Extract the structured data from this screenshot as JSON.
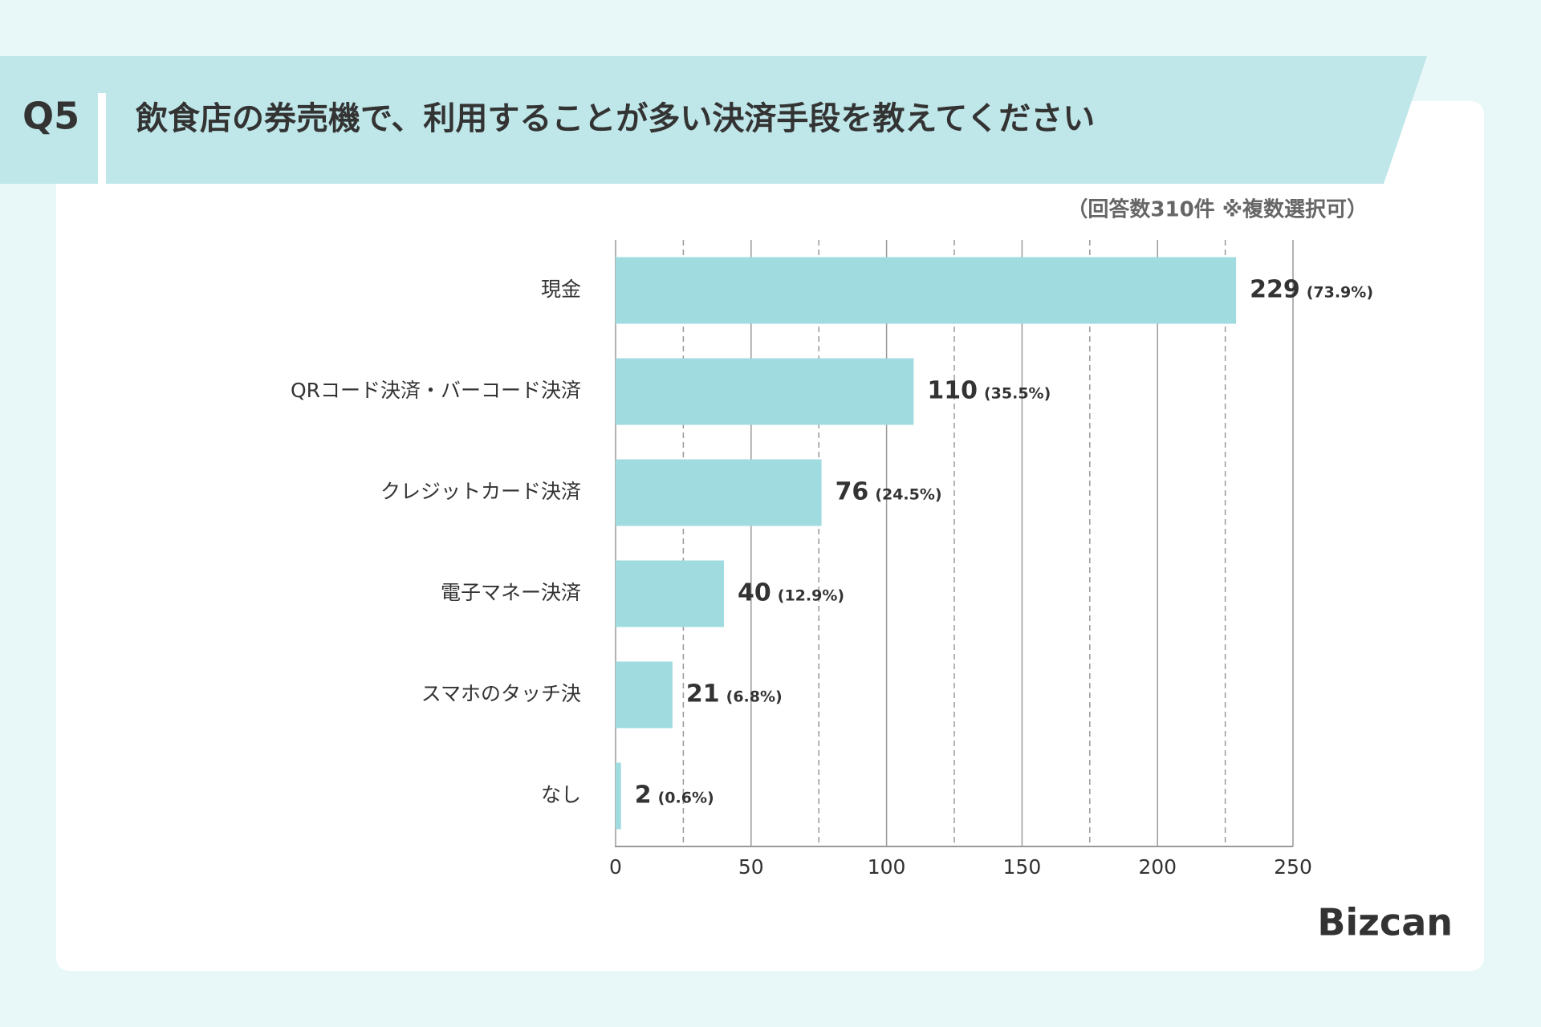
{
  "chart_data": {
    "type": "barh",
    "question": "Q5",
    "title": "飲食店の券売機で、利用することが多い決済手段を教えてください",
    "subtitle": "（回答数310件 ※複数選択可）",
    "logo": "Bizcan",
    "categories": [
      "現金",
      "QRコード決済・バーコード決済",
      "クレジットカード決済",
      "電子マネー決済",
      "スマホのタッチ決",
      "なし"
    ],
    "values": [
      229,
      110,
      76,
      40,
      21,
      2
    ],
    "shares": [
      73.9,
      35.5,
      24.5,
      12.9,
      6.8,
      0.6
    ],
    "share_labels": [
      "(73.9%)",
      "(35.5%)",
      "(24.5%)",
      "(12.9%)",
      "(6.8%)",
      "(0.6%)"
    ],
    "color": "#a0dbe0",
    "xlim": [
      0,
      250
    ],
    "xticks": [
      0,
      50,
      100,
      150,
      200,
      250
    ],
    "minor_xticks": [
      25,
      75,
      125,
      175,
      225
    ],
    "grid": true
  }
}
